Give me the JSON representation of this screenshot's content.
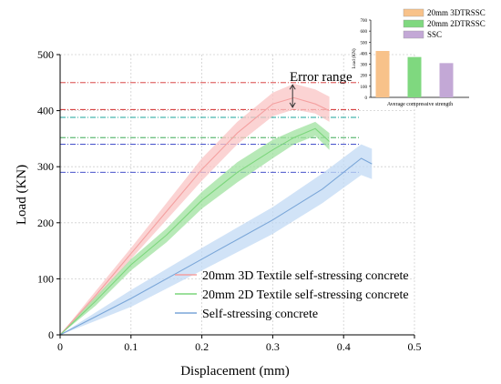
{
  "chart_data": [
    {
      "type": "line",
      "xlabel": "Displacement (mm)",
      "ylabel": "Load (KN)",
      "xlim": [
        0,
        0.5
      ],
      "ylim": [
        0,
        500
      ],
      "xticks": [
        0,
        0.1,
        0.2,
        0.3,
        0.4,
        0.5
      ],
      "xtick_labels": [
        "0",
        "0.1",
        "0.2",
        "0.3",
        "0.4",
        "0.5"
      ],
      "yticks": [
        0,
        100,
        200,
        300,
        400,
        500
      ],
      "ytick_labels": [
        "0",
        "100",
        "200",
        "300",
        "400",
        "500"
      ],
      "grid": true,
      "legend_position": "bottom-right",
      "annotation": "Error range",
      "series": [
        {
          "name": "20mm 3D Textile self-stressing concrete",
          "color": "#f4a0a0",
          "band_color": "#f9c4c4",
          "x": [
            0,
            0.05,
            0.1,
            0.15,
            0.2,
            0.25,
            0.3,
            0.33,
            0.36,
            0.38
          ],
          "y": [
            0,
            70,
            145,
            220,
            295,
            360,
            412,
            423,
            412,
            400
          ],
          "lower": [
            0,
            62,
            135,
            205,
            275,
            340,
            390,
            402,
            395,
            380
          ],
          "upper": [
            0,
            78,
            155,
            235,
            315,
            380,
            432,
            448,
            438,
            425
          ]
        },
        {
          "name": "20mm 2D Textile self-stressing concrete",
          "color": "#7cd67c",
          "band_color": "#9fe29f",
          "x": [
            0,
            0.05,
            0.1,
            0.15,
            0.2,
            0.25,
            0.3,
            0.33,
            0.36,
            0.38
          ],
          "y": [
            0,
            60,
            125,
            178,
            240,
            290,
            330,
            352,
            368,
            345
          ],
          "lower": [
            0,
            52,
            115,
            165,
            225,
            272,
            315,
            340,
            355,
            330
          ],
          "upper": [
            0,
            68,
            135,
            190,
            255,
            308,
            348,
            365,
            380,
            360
          ]
        },
        {
          "name": "Self-stressing concrete",
          "color": "#7aa6d8",
          "band_color": "#c2daf4",
          "x": [
            0,
            0.1,
            0.2,
            0.3,
            0.37,
            0.425,
            0.44
          ],
          "y": [
            0,
            65,
            135,
            205,
            260,
            315,
            305
          ],
          "lower": [
            0,
            50,
            115,
            180,
            235,
            285,
            278
          ],
          "upper": [
            0,
            80,
            155,
            228,
            288,
            340,
            332
          ]
        }
      ],
      "reference_lines": [
        {
          "y": 450,
          "color": "#d22b2b"
        },
        {
          "y": 402,
          "color": "#d22b2b"
        },
        {
          "y": 388,
          "color": "#1aa59a"
        },
        {
          "y": 352,
          "color": "#1e9e3a"
        },
        {
          "y": 340,
          "color": "#2b39c4"
        },
        {
          "y": 290,
          "color": "#2b39c4"
        }
      ]
    },
    {
      "type": "bar",
      "categories": [
        "20mm 3DTRSSC",
        "20mm 2DTRSSC",
        "SSC"
      ],
      "values": [
        420,
        365,
        310
      ],
      "colors": [
        "#f8c28a",
        "#7fd87f",
        "#c3a8d6"
      ],
      "xlabel": "Average compressive strength",
      "ylabel": "Load (KN)",
      "ylim": [
        0,
        700
      ],
      "yticks": [
        0,
        100,
        200,
        300,
        400,
        500,
        600,
        700
      ],
      "ytick_labels": [
        "0",
        "100",
        "200",
        "300",
        "400",
        "500",
        "600",
        "700"
      ],
      "legend_position": "top"
    }
  ]
}
